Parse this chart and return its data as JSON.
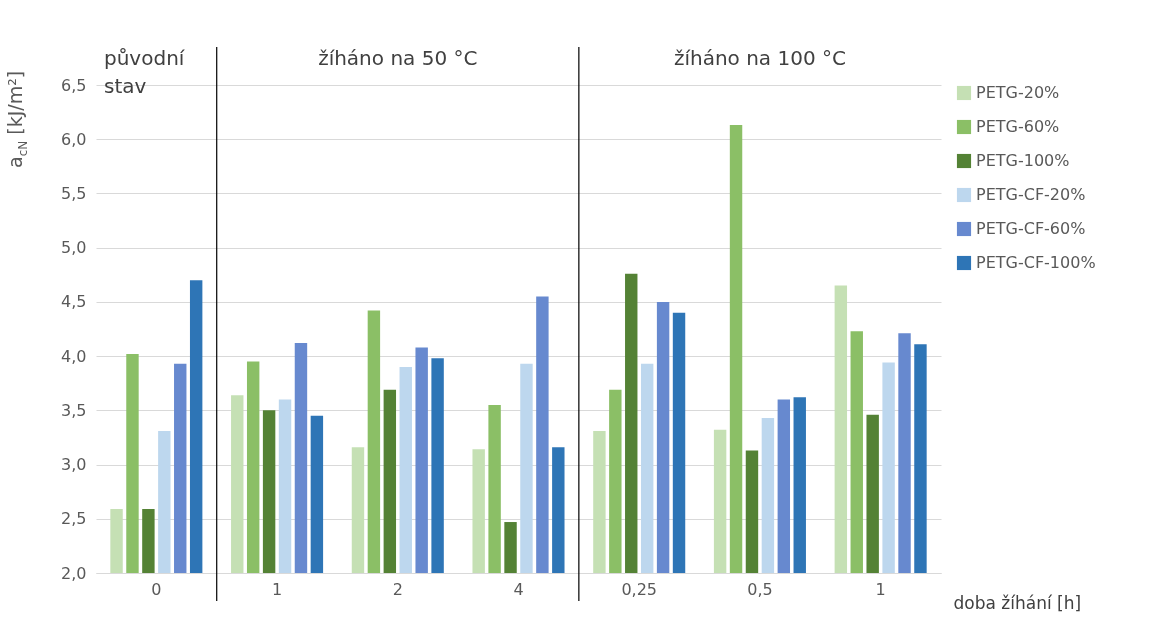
{
  "chart_data": {
    "type": "bar",
    "ylabel": "a$_{cN}$ [kJ/m²]",
    "xlabel": "doba žíhání [h]",
    "categories": [
      "0",
      "1",
      "2",
      "4",
      "0,25",
      "0,5",
      "1"
    ],
    "series": [
      {
        "name": "PETG-20%",
        "color": "#c5e0b4",
        "values": [
          2.59,
          3.64,
          3.16,
          3.14,
          3.31,
          3.32,
          4.65
        ]
      },
      {
        "name": "PETG-60%",
        "color": "#8bbf66",
        "values": [
          4.02,
          3.95,
          4.42,
          3.55,
          3.69,
          6.13,
          4.23
        ]
      },
      {
        "name": "PETG-100%",
        "color": "#548235",
        "values": [
          2.59,
          3.5,
          3.69,
          2.47,
          4.76,
          3.13,
          3.46
        ]
      },
      {
        "name": "PETG-CF-20%",
        "color": "#bdd7ee",
        "values": [
          3.31,
          3.6,
          3.9,
          3.93,
          3.93,
          3.43,
          3.94
        ]
      },
      {
        "name": "PETG-CF-60%",
        "color": "#6789cf",
        "values": [
          3.93,
          4.12,
          4.08,
          4.55,
          4.5,
          3.6,
          4.21
        ]
      },
      {
        "name": "PETG-CF-100%",
        "color": "#2e75b6",
        "values": [
          4.7,
          3.45,
          3.98,
          3.16,
          4.4,
          3.62,
          4.11
        ]
      }
    ],
    "ylim": [
      2.0,
      6.5
    ],
    "yticks": [
      {
        "value": 2.0,
        "label": "2,0"
      },
      {
        "value": 2.5,
        "label": "2,5"
      },
      {
        "value": 3.0,
        "label": "3,0"
      },
      {
        "value": 3.5,
        "label": "3,5"
      },
      {
        "value": 4.0,
        "label": "4,0"
      },
      {
        "value": 4.5,
        "label": "4,5"
      },
      {
        "value": 5.0,
        "label": "5,0"
      },
      {
        "value": 5.5,
        "label": "5,5"
      },
      {
        "value": 6.0,
        "label": "6,0"
      },
      {
        "value": 6.5,
        "label": "6,5"
      }
    ],
    "grid": "y",
    "legend": "right",
    "annotations": [
      "původní stav",
      "žíháno na 50 °C",
      "žíháno na 100 °C"
    ]
  }
}
